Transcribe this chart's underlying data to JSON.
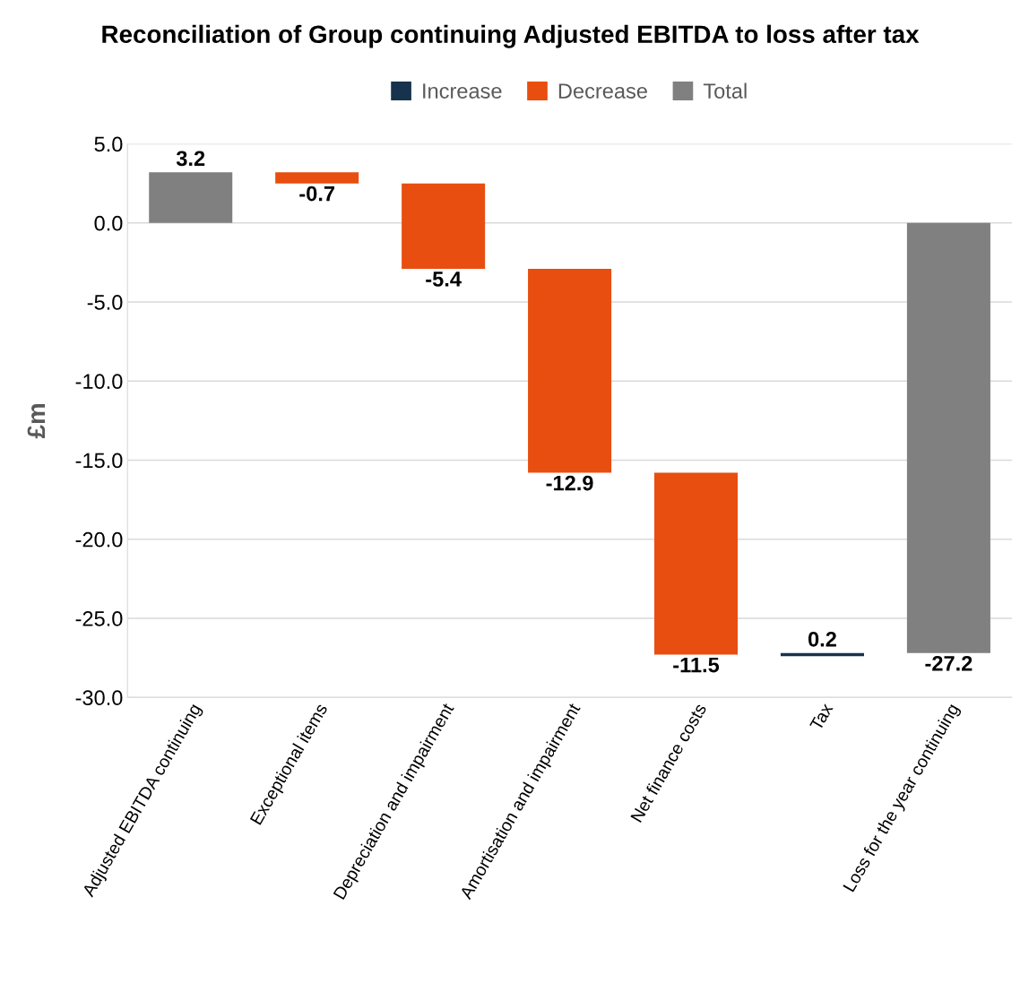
{
  "chart_data": {
    "type": "bar",
    "title": "Reconciliation of Group continuing Adjusted EBITDA to loss after tax",
    "ylabel": "£m",
    "categories": [
      "Adjusted EBITDA continuing",
      "Exceptional items",
      "Depreciation and impairment",
      "Amortisation and impairment",
      "Net finance costs",
      "Tax",
      "Loss for the year continuing"
    ],
    "series": [
      {
        "name": "Increase",
        "color": "#17324d",
        "values": [
          null,
          null,
          null,
          null,
          null,
          0.2,
          null
        ],
        "base": [
          null,
          null,
          null,
          null,
          null,
          -27.4,
          null
        ]
      },
      {
        "name": "Decrease",
        "color": "#e84e10",
        "values": [
          null,
          -0.7,
          -5.4,
          -12.9,
          -11.5,
          null,
          null
        ],
        "base": [
          null,
          3.2,
          2.5,
          -2.9,
          -15.8,
          null,
          null
        ]
      },
      {
        "name": "Total",
        "color": "#808080",
        "values": [
          3.2,
          null,
          null,
          null,
          null,
          null,
          -27.2
        ],
        "base": [
          0,
          null,
          null,
          null,
          null,
          null,
          0
        ]
      }
    ],
    "ylim": [
      -30,
      5
    ],
    "yticks": [
      {
        "value": 5,
        "label": "5.0"
      },
      {
        "value": 0,
        "label": "0.0"
      },
      {
        "value": -5,
        "label": "-5.0"
      },
      {
        "value": -10,
        "label": "-10.0"
      },
      {
        "value": -15,
        "label": "-15.0"
      },
      {
        "value": -20,
        "label": "-20.0"
      },
      {
        "value": -25,
        "label": "-25.0"
      },
      {
        "value": -30,
        "label": "-30.0"
      }
    ],
    "grid": "y",
    "legend": "top",
    "data_labels": true
  }
}
